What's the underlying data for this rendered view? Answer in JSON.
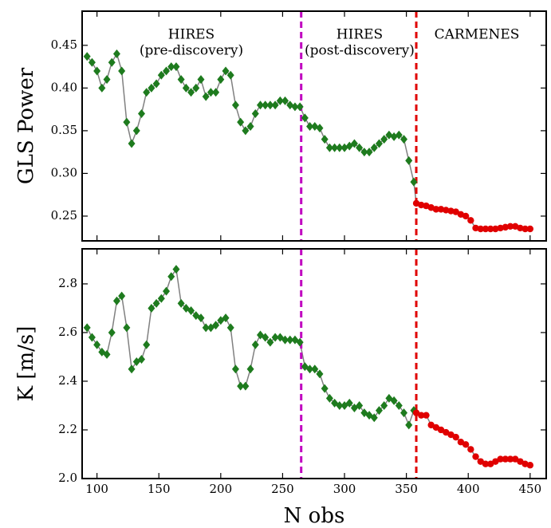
{
  "chart_data": [
    {
      "type": "line",
      "ylabel": "GLS Power",
      "xlim": [
        88,
        463
      ],
      "xticks": [
        100,
        150,
        200,
        250,
        300,
        350,
        400,
        450
      ],
      "ylim": [
        0.221,
        0.49
      ],
      "yticks": [
        0.25,
        {
          "value": 0.3,
          "label": "0.30"
        },
        0.35,
        {
          "value": 0.4,
          "label": "0.40"
        },
        0.45
      ],
      "line_color": "#808080",
      "vlines": [
        {
          "x": 265,
          "color": "#c000c0"
        },
        {
          "x": 358,
          "color": "#e00000"
        }
      ],
      "annotations": [
        {
          "lines": [
            "HIRES",
            "(pre-discovery)"
          ]
        },
        {
          "lines": [
            "HIRES",
            "(post-discovery)"
          ]
        },
        {
          "lines": [
            "CARMENES"
          ]
        }
      ],
      "series": [
        {
          "color": "#1e7b1e",
          "marker": "diamond",
          "x": [
            92,
            96,
            100,
            104,
            108,
            112,
            116,
            120,
            124,
            128,
            132,
            136,
            140,
            144,
            148,
            152,
            156,
            160,
            164,
            168,
            172,
            176,
            180,
            184,
            188,
            192,
            196,
            200,
            204,
            208,
            212,
            216,
            220,
            224,
            228,
            232,
            236,
            240,
            244,
            248,
            252,
            256,
            260,
            264,
            268,
            272,
            276,
            280,
            284,
            288,
            292,
            296,
            300,
            304,
            308,
            312,
            316,
            320,
            324,
            328,
            332,
            336,
            340,
            344,
            348,
            352,
            356
          ],
          "values": [
            0.437,
            0.43,
            0.42,
            0.4,
            0.41,
            0.43,
            0.44,
            0.42,
            0.36,
            0.335,
            0.35,
            0.37,
            0.395,
            0.4,
            0.405,
            0.415,
            0.42,
            0.425,
            0.425,
            0.41,
            0.4,
            0.395,
            0.4,
            0.41,
            0.39,
            0.395,
            0.395,
            0.41,
            0.42,
            0.415,
            0.38,
            0.36,
            0.35,
            0.355,
            0.37,
            0.38,
            0.38,
            0.38,
            0.38,
            0.385,
            0.385,
            0.38,
            0.378,
            0.378,
            0.365,
            0.355,
            0.355,
            0.353,
            0.34,
            0.33,
            0.33,
            0.33,
            0.33,
            0.332,
            0.335,
            0.33,
            0.325,
            0.325,
            0.33,
            0.335,
            0.34,
            0.345,
            0.343,
            0.345,
            0.34,
            0.315,
            0.29
          ]
        },
        {
          "color": "#e00000",
          "marker": "circle",
          "x": [
            358,
            362,
            366,
            370,
            374,
            378,
            382,
            386,
            390,
            394,
            398,
            402,
            406,
            410,
            414,
            418,
            422,
            426,
            430,
            434,
            438,
            442,
            446,
            450
          ],
          "values": [
            0.265,
            0.263,
            0.262,
            0.26,
            0.258,
            0.258,
            0.257,
            0.256,
            0.255,
            0.252,
            0.25,
            0.245,
            0.236,
            0.235,
            0.235,
            0.235,
            0.235,
            0.236,
            0.237,
            0.238,
            0.238,
            0.236,
            0.235,
            0.235
          ]
        }
      ]
    },
    {
      "type": "line",
      "ylabel": "K [m/s]",
      "xlabel": "N obs",
      "xlim": [
        88,
        463
      ],
      "xticks": [
        100,
        150,
        200,
        250,
        300,
        350,
        400,
        450
      ],
      "ylim": [
        2.0,
        2.944
      ],
      "yticks": [
        {
          "value": 2,
          "label": "2.0"
        },
        2.2,
        2.4,
        2.6,
        2.8
      ],
      "line_color": "#808080",
      "vlines": [
        {
          "x": 265,
          "color": "#c000c0"
        },
        {
          "x": 358,
          "color": "#e00000"
        }
      ],
      "series": [
        {
          "color": "#1e7b1e",
          "marker": "diamond",
          "x": [
            92,
            96,
            100,
            104,
            108,
            112,
            116,
            120,
            124,
            128,
            132,
            136,
            140,
            144,
            148,
            152,
            156,
            160,
            164,
            168,
            172,
            176,
            180,
            184,
            188,
            192,
            196,
            200,
            204,
            208,
            212,
            216,
            220,
            224,
            228,
            232,
            236,
            240,
            244,
            248,
            252,
            256,
            260,
            264,
            268,
            272,
            276,
            280,
            284,
            288,
            292,
            296,
            300,
            304,
            308,
            312,
            316,
            320,
            324,
            328,
            332,
            336,
            340,
            344,
            348,
            352,
            356
          ],
          "values": [
            2.62,
            2.58,
            2.55,
            2.52,
            2.51,
            2.6,
            2.73,
            2.75,
            2.62,
            2.45,
            2.48,
            2.49,
            2.55,
            2.7,
            2.72,
            2.74,
            2.77,
            2.83,
            2.86,
            2.72,
            2.7,
            2.69,
            2.67,
            2.66,
            2.62,
            2.62,
            2.63,
            2.65,
            2.66,
            2.62,
            2.45,
            2.38,
            2.38,
            2.45,
            2.55,
            2.59,
            2.58,
            2.56,
            2.58,
            2.58,
            2.57,
            2.57,
            2.57,
            2.56,
            2.46,
            2.45,
            2.45,
            2.43,
            2.37,
            2.33,
            2.31,
            2.3,
            2.3,
            2.31,
            2.29,
            2.3,
            2.27,
            2.26,
            2.25,
            2.28,
            2.3,
            2.33,
            2.32,
            2.3,
            2.27,
            2.22,
            2.28
          ]
        },
        {
          "color": "#e00000",
          "marker": "circle",
          "x": [
            358,
            362,
            366,
            370,
            374,
            378,
            382,
            386,
            390,
            394,
            398,
            402,
            406,
            410,
            414,
            418,
            422,
            426,
            430,
            434,
            438,
            442,
            446,
            450
          ],
          "values": [
            2.27,
            2.26,
            2.26,
            2.22,
            2.21,
            2.2,
            2.19,
            2.18,
            2.17,
            2.15,
            2.14,
            2.12,
            2.09,
            2.07,
            2.06,
            2.06,
            2.07,
            2.08,
            2.08,
            2.08,
            2.08,
            2.07,
            2.06,
            2.055
          ]
        }
      ]
    }
  ]
}
